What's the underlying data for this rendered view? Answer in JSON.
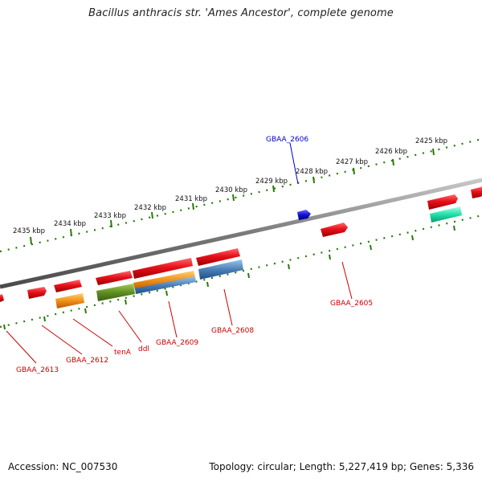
{
  "title": "Bacillus anthracis str. 'Ames Ancestor', complete genome",
  "footer": {
    "accession": "Accession: NC_007530",
    "summary": "Topology: circular; Length: 5,227,419 bp; Genes: 5,336"
  },
  "ruler": {
    "labels": [
      "2425 kbp",
      "2426 kbp",
      "2427 kbp",
      "2428 kbp",
      "2429 kbp",
      "2430 kbp",
      "2431 kbp",
      "2432 kbp",
      "2433 kbp",
      "2434 kbp",
      "2435 kbp"
    ]
  },
  "colors": {
    "red": "#e8101a",
    "orange": "#f0901a",
    "steel": "#4a80b8",
    "olive": "#5e8f22",
    "blue": "#1010d0",
    "teal": "#20e0a8",
    "tick": "#2a7a0a",
    "backbone": "#808080",
    "label_red": "#cc0000",
    "label_blue": "#0000cc"
  },
  "gene_labels": [
    "GBAA_2606",
    "GBAA_2605",
    "GBAA_2608",
    "GBAA_2609",
    "ddl",
    "tenA",
    "GBAA_2612",
    "GBAA_2613"
  ]
}
